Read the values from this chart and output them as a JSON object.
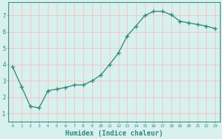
{
  "x": [
    0,
    1,
    2,
    3,
    4,
    5,
    6,
    7,
    8,
    9,
    10,
    11,
    12,
    13,
    14,
    15,
    16,
    17,
    18,
    19,
    20,
    21,
    22,
    23
  ],
  "y": [
    3.85,
    2.65,
    1.45,
    1.35,
    2.4,
    2.5,
    2.6,
    2.75,
    2.75,
    3.0,
    3.35,
    4.0,
    4.7,
    5.75,
    6.35,
    7.0,
    7.25,
    7.25,
    7.05,
    6.65,
    6.55,
    6.45,
    6.35,
    6.2
  ],
  "line_color": "#2e8b78",
  "marker": "+",
  "marker_color": "#2e8b78",
  "bg_color": "#d8f0ee",
  "grid_color": "#f5bfbf",
  "tick_color": "#2e8b78",
  "xlabel": "Humidex (Indice chaleur)",
  "xlabel_fontsize": 7.0,
  "xlabel_color": "#2e8b78",
  "ylabel_ticks": [
    1,
    2,
    3,
    4,
    5,
    6,
    7
  ],
  "xlim": [
    -0.5,
    23.5
  ],
  "ylim": [
    0.5,
    7.8
  ],
  "xtick_labels": [
    "0",
    "1",
    "2",
    "3",
    "4",
    "5",
    "6",
    "7",
    "8",
    "9",
    "10",
    "11",
    "12",
    "13",
    "14",
    "15",
    "16",
    "17",
    "18",
    "19",
    "20",
    "21",
    "22",
    "23"
  ],
  "line_width": 1.0,
  "marker_size": 4
}
